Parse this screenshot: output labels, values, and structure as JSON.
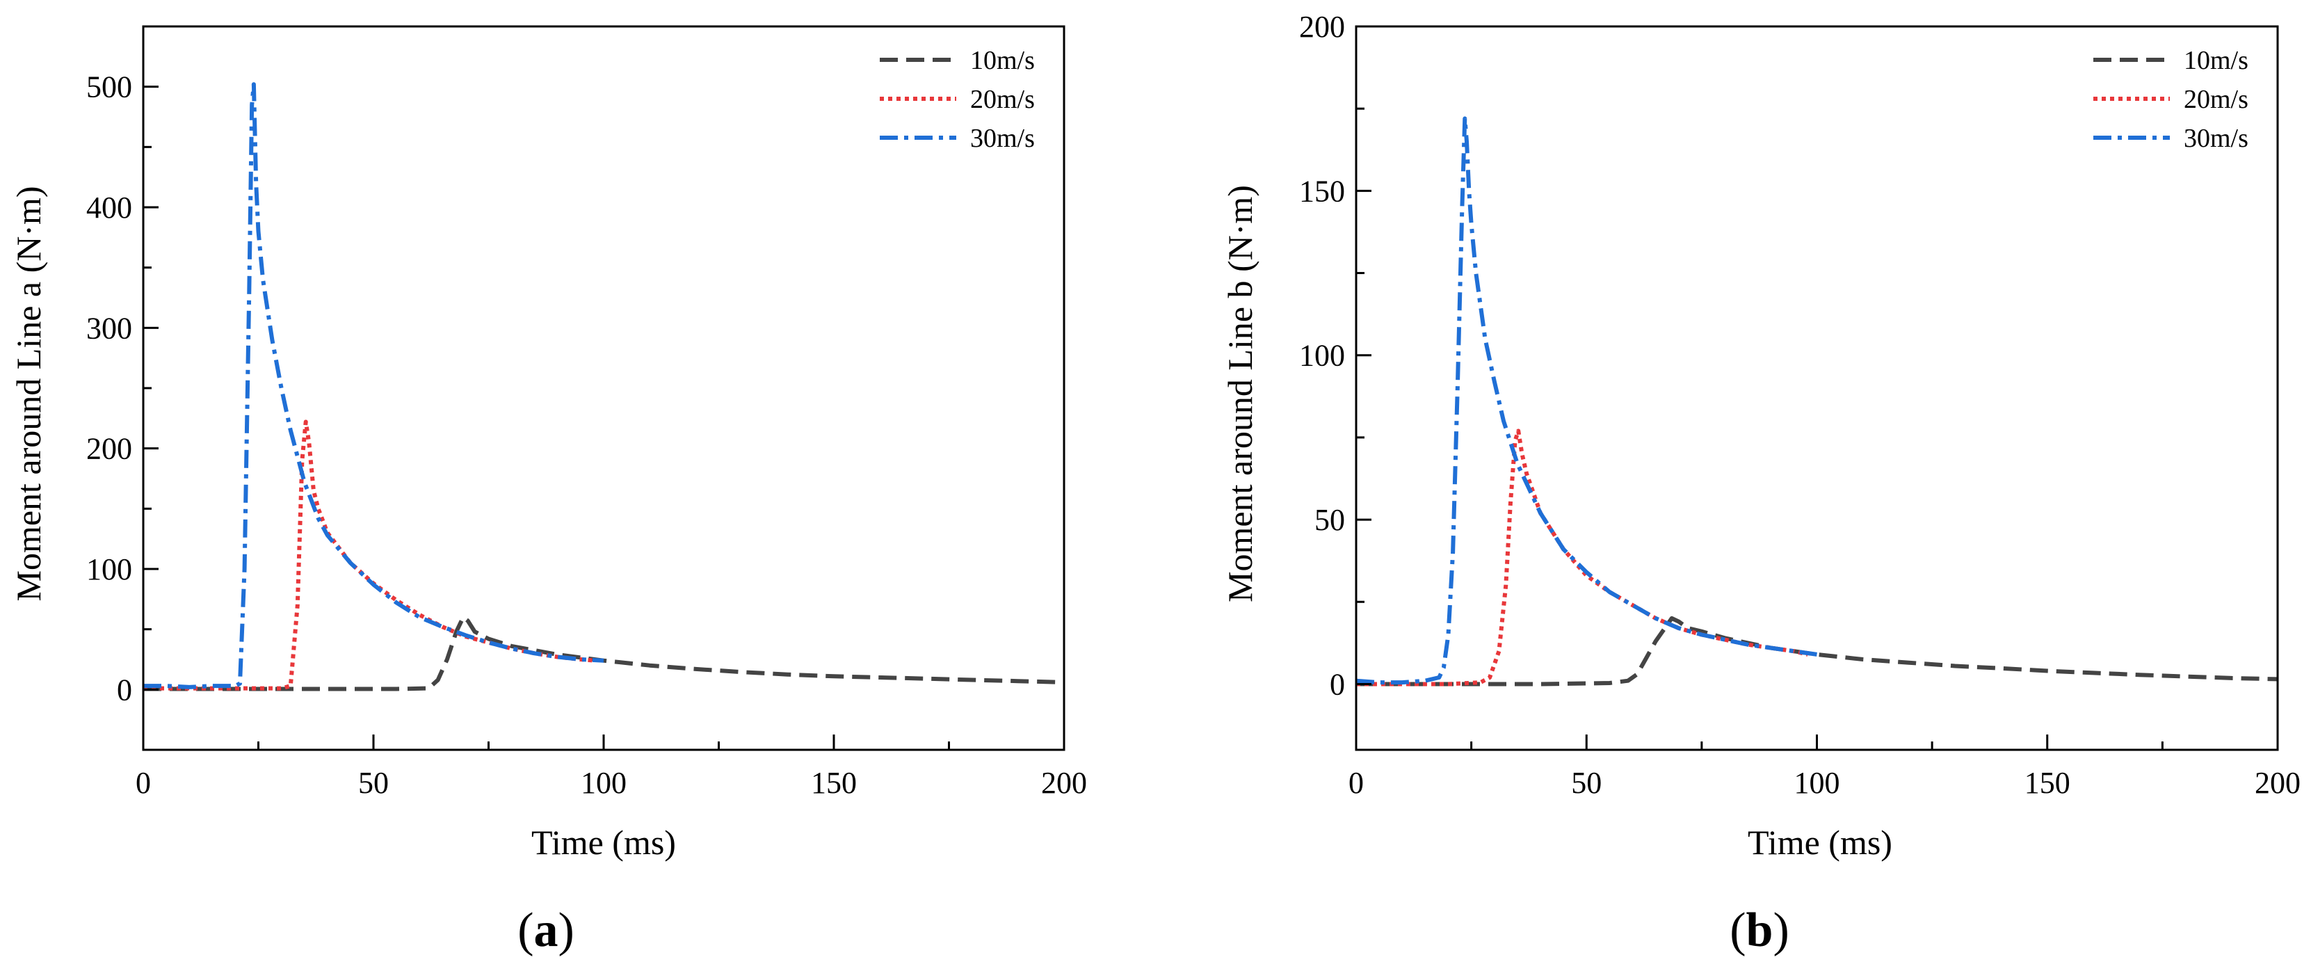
{
  "chart_data": [
    {
      "type": "line",
      "panel": "a",
      "panel_label_open": "(",
      "panel_label_letter": "a",
      "panel_label_close": ")",
      "xlabel": "Time (ms)",
      "ylabel": "Moment around Line a (N·m)",
      "xlim": [
        0,
        200
      ],
      "ylim": [
        -50,
        550
      ],
      "xticks": [
        0,
        50,
        100,
        150,
        200
      ],
      "yticks": [
        0,
        100,
        200,
        300,
        400,
        500
      ],
      "legend_position": "top-right",
      "series": [
        {
          "name": "10m/s",
          "color": "#444444",
          "dash": "dashed",
          "points": [
            [
              0,
              0.5
            ],
            [
              20,
              0.5
            ],
            [
              40,
              0.5
            ],
            [
              55,
              0.5
            ],
            [
              62,
              1
            ],
            [
              64,
              8
            ],
            [
              66,
              25
            ],
            [
              68,
              48
            ],
            [
              69.5,
              60
            ],
            [
              70.5,
              57
            ],
            [
              72,
              48
            ],
            [
              75,
              42
            ],
            [
              80,
              36
            ],
            [
              90,
              29
            ],
            [
              100,
              24
            ],
            [
              110,
              20
            ],
            [
              120,
              17
            ],
            [
              130,
              14.5
            ],
            [
              140,
              12.5
            ],
            [
              150,
              11
            ],
            [
              160,
              10
            ],
            [
              170,
              9
            ],
            [
              180,
              8
            ],
            [
              190,
              7
            ],
            [
              200,
              6
            ]
          ]
        },
        {
          "name": "20m/s",
          "color": "#e8373a",
          "dash": "dotted",
          "points": [
            [
              0,
              1
            ],
            [
              10,
              1
            ],
            [
              20,
              1
            ],
            [
              30,
              1
            ],
            [
              32,
              3
            ],
            [
              33.5,
              70
            ],
            [
              34.5,
              190
            ],
            [
              35.3,
              222
            ],
            [
              36,
              205
            ],
            [
              37,
              165
            ],
            [
              38,
              150
            ],
            [
              40,
              130
            ],
            [
              45,
              105
            ],
            [
              50,
              88
            ],
            [
              55,
              74
            ],
            [
              60,
              62
            ],
            [
              65,
              52
            ],
            [
              70,
              44
            ],
            [
              75,
              39
            ],
            [
              80,
              34
            ],
            [
              85,
              30
            ],
            [
              90,
              27
            ],
            [
              95,
              25
            ],
            [
              98,
              24
            ]
          ]
        },
        {
          "name": "30m/s",
          "color": "#1f6fd6",
          "dash": "dashdot",
          "points": [
            [
              0,
              3
            ],
            [
              5,
              3
            ],
            [
              10,
              2
            ],
            [
              15,
              3
            ],
            [
              20,
              3
            ],
            [
              21,
              5
            ],
            [
              22,
              100
            ],
            [
              23,
              330
            ],
            [
              23.6,
              485
            ],
            [
              24,
              502
            ],
            [
              24.5,
              420
            ],
            [
              25,
              380
            ],
            [
              26,
              340
            ],
            [
              28,
              290
            ],
            [
              30,
              250
            ],
            [
              32,
              215
            ],
            [
              35,
              172
            ],
            [
              38,
              142
            ],
            [
              40,
              128
            ],
            [
              45,
              105
            ],
            [
              50,
              87
            ],
            [
              55,
              72
            ],
            [
              60,
              60
            ],
            [
              65,
              52
            ],
            [
              70,
              45
            ],
            [
              75,
              39
            ],
            [
              80,
              34
            ],
            [
              85,
              30
            ],
            [
              90,
              27
            ],
            [
              95,
              25
            ],
            [
              100,
              24
            ]
          ]
        }
      ]
    },
    {
      "type": "line",
      "panel": "b",
      "panel_label_open": "(",
      "panel_label_letter": "b",
      "panel_label_close": ")",
      "xlabel": "Time (ms)",
      "ylabel": "Moment around Line b (N·m)",
      "xlim": [
        0,
        200
      ],
      "ylim": [
        -20,
        200
      ],
      "xticks": [
        0,
        50,
        100,
        150,
        200
      ],
      "yticks": [
        0,
        50,
        100,
        150,
        200
      ],
      "legend_position": "top-right",
      "series": [
        {
          "name": "10m/s",
          "color": "#444444",
          "dash": "dashed",
          "points": [
            [
              0,
              0
            ],
            [
              20,
              0
            ],
            [
              40,
              0
            ],
            [
              55,
              0.3
            ],
            [
              59,
              1
            ],
            [
              61,
              3
            ],
            [
              63,
              8
            ],
            [
              65,
              13
            ],
            [
              67,
              17
            ],
            [
              68.5,
              20
            ],
            [
              70,
              19
            ],
            [
              72,
              17
            ],
            [
              75,
              16
            ],
            [
              80,
              14
            ],
            [
              90,
              11
            ],
            [
              100,
              9
            ],
            [
              110,
              7.5
            ],
            [
              120,
              6.5
            ],
            [
              130,
              5.5
            ],
            [
              140,
              4.8
            ],
            [
              150,
              4
            ],
            [
              160,
              3.4
            ],
            [
              170,
              2.8
            ],
            [
              180,
              2.3
            ],
            [
              190,
              1.8
            ],
            [
              200,
              1.5
            ]
          ]
        },
        {
          "name": "20m/s",
          "color": "#e8373a",
          "dash": "dotted",
          "points": [
            [
              0,
              0
            ],
            [
              10,
              0
            ],
            [
              20,
              0
            ],
            [
              27,
              0.5
            ],
            [
              29,
              2
            ],
            [
              31,
              10
            ],
            [
              32.5,
              30
            ],
            [
              33.5,
              55
            ],
            [
              34.5,
              74
            ],
            [
              35.2,
              77
            ],
            [
              36,
              70
            ],
            [
              37,
              64
            ],
            [
              38,
              60
            ],
            [
              40,
              52
            ],
            [
              45,
              41
            ],
            [
              50,
              33
            ],
            [
              55,
              28
            ],
            [
              60,
              24
            ],
            [
              65,
              20
            ],
            [
              70,
              17
            ],
            [
              75,
              15
            ],
            [
              80,
              13.5
            ],
            [
              85,
              12
            ],
            [
              90,
              11
            ],
            [
              95,
              10
            ],
            [
              98,
              9
            ]
          ]
        },
        {
          "name": "30m/s",
          "color": "#1f6fd6",
          "dash": "dashdot",
          "points": [
            [
              0,
              1
            ],
            [
              5,
              0.5
            ],
            [
              10,
              0.5
            ],
            [
              15,
              1
            ],
            [
              18,
              2
            ],
            [
              19,
              5
            ],
            [
              20,
              15
            ],
            [
              21,
              40
            ],
            [
              22,
              90
            ],
            [
              23,
              145
            ],
            [
              23.6,
              172
            ],
            [
              24,
              165
            ],
            [
              24.5,
              150
            ],
            [
              25,
              140
            ],
            [
              26,
              125
            ],
            [
              28,
              105
            ],
            [
              30,
              92
            ],
            [
              32,
              80
            ],
            [
              35,
              67
            ],
            [
              38,
              58
            ],
            [
              40,
              52
            ],
            [
              45,
              41
            ],
            [
              50,
              34
            ],
            [
              55,
              28
            ],
            [
              60,
              24
            ],
            [
              65,
              20
            ],
            [
              70,
              17
            ],
            [
              75,
              15
            ],
            [
              80,
              13.5
            ],
            [
              85,
              12
            ],
            [
              90,
              11
            ],
            [
              95,
              10
            ],
            [
              100,
              9
            ]
          ]
        }
      ]
    }
  ]
}
